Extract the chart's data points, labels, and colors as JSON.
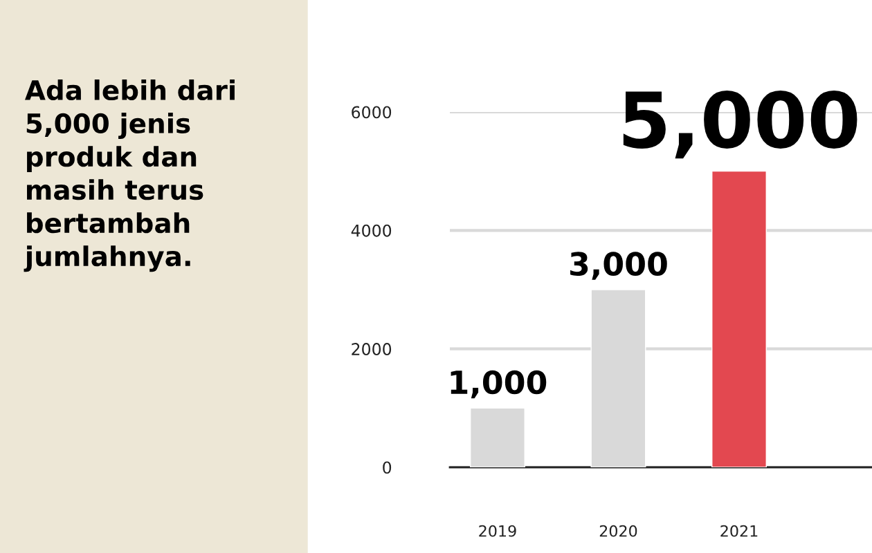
{
  "chart_data": {
    "type": "bar",
    "title": "Ada lebih dari 5,000 jenis produk dan masih terus bertambah jumlahnya.",
    "categories": [
      "2019",
      "2020",
      "2021"
    ],
    "values": [
      1000,
      3000,
      5000
    ],
    "colors": [
      "#d9d9d9",
      "#d9d9d9",
      "#e34850"
    ],
    "value_labels": [
      "1,000",
      "3,000",
      "5,000"
    ],
    "ylim": [
      0,
      6000
    ],
    "yticks": [
      0,
      2000,
      4000,
      6000
    ],
    "grid": "y",
    "legend": false
  }
}
